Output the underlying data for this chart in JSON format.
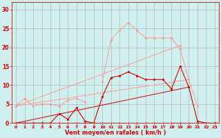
{
  "bg_color": "#cff0ee",
  "grid_color": "#aaaaaa",
  "x_values": [
    0,
    1,
    2,
    3,
    4,
    5,
    6,
    7,
    8,
    9,
    10,
    11,
    12,
    13,
    14,
    15,
    16,
    17,
    18,
    19,
    20,
    21,
    22,
    23
  ],
  "series": [
    {
      "color": "#ff9999",
      "linewidth": 0.7,
      "markersize": 2.0,
      "marker": "o",
      "data": [
        4.5,
        6.5,
        4.5,
        5.0,
        5.0,
        4.5,
        6.0,
        6.5,
        5.5,
        null,
        11.0,
        22.0,
        24.5,
        26.5,
        24.5,
        22.5,
        22.5,
        22.5,
        22.5,
        19.5,
        11.5,
        4.5,
        null,
        null
      ]
    },
    {
      "color": "#ff9999",
      "linewidth": 0.7,
      "markersize": 2.0,
      "marker": "o",
      "data": [
        4.5,
        null,
        null,
        null,
        null,
        null,
        null,
        null,
        null,
        null,
        null,
        null,
        null,
        null,
        null,
        null,
        null,
        null,
        null,
        20.5,
        null,
        null,
        null,
        null
      ]
    },
    {
      "color": "#cc0000",
      "linewidth": 0.8,
      "markersize": 2.0,
      "marker": "o",
      "data": [
        0.0,
        0.0,
        0.0,
        0.0,
        0.0,
        2.5,
        1.0,
        4.0,
        0.5,
        0.0,
        7.0,
        12.0,
        12.5,
        13.5,
        12.5,
        11.5,
        11.5,
        11.5,
        9.0,
        15.0,
        9.5,
        0.5,
        0.0,
        0.0
      ]
    },
    {
      "color": "#ff4444",
      "linewidth": 0.7,
      "markersize": 1.5,
      "marker": "o",
      "data": [
        0.0,
        0.0,
        0.0,
        0.0,
        0.0,
        0.0,
        0.0,
        0.0,
        0.0,
        0.0,
        0.0,
        0.0,
        0.0,
        0.0,
        0.0,
        0.0,
        0.0,
        0.0,
        0.0,
        0.0,
        0.0,
        0.0,
        0.0,
        0.0
      ]
    }
  ],
  "linear_lines": [
    {
      "color": "#ff9999",
      "linewidth": 0.7,
      "x": [
        0,
        19
      ],
      "y": [
        4.5,
        20.5
      ]
    },
    {
      "color": "#ff9999",
      "linewidth": 0.7,
      "x": [
        0,
        20
      ],
      "y": [
        4.5,
        11.5
      ]
    },
    {
      "color": "#cc0000",
      "linewidth": 0.7,
      "x": [
        0,
        20
      ],
      "y": [
        0.0,
        9.5
      ]
    }
  ],
  "xlabel": "Vent moyen/en rafales ( km/h )",
  "xlim": [
    -0.5,
    23.5
  ],
  "ylim": [
    0,
    32
  ],
  "yticks": [
    0,
    5,
    10,
    15,
    20,
    25,
    30
  ],
  "xticks": [
    0,
    1,
    2,
    3,
    4,
    5,
    6,
    7,
    8,
    9,
    10,
    11,
    12,
    13,
    14,
    15,
    16,
    17,
    18,
    19,
    20,
    21,
    22,
    23
  ],
  "title_color": "#cc0000",
  "axis_color": "#cc0000",
  "tick_color": "#cc0000",
  "xlabel_fontsize": 6.0,
  "tick_fontsize_x": 4.5,
  "tick_fontsize_y": 5.5
}
